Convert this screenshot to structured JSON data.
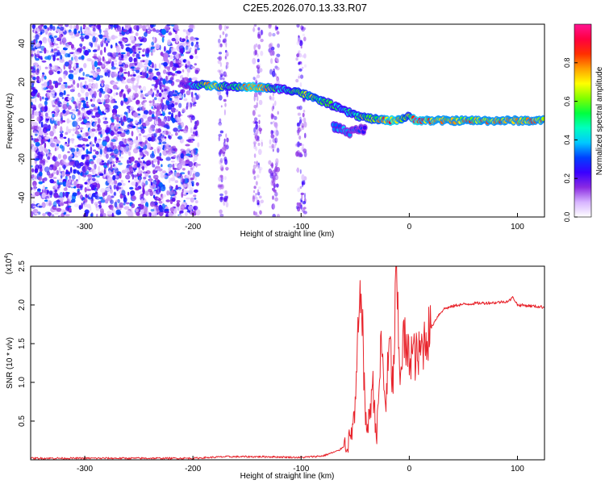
{
  "title": "C2E5.2026.070.13.33.R07",
  "chart_data": [
    {
      "type": "heatmap",
      "name": "spectrogram",
      "xlabel": "Height of straight line (km)",
      "ylabel": "Frequency (Hz)",
      "xlim": [
        -350,
        125
      ],
      "ylim": [
        -50,
        50
      ],
      "xticks": [
        -300,
        -200,
        -100,
        0,
        100
      ],
      "yticks": [
        -40,
        -20,
        0,
        20,
        40
      ],
      "colorbar": {
        "label": "Normalized spectral amplitude",
        "range": [
          0.0,
          1.0
        ],
        "ticks": [
          0.0,
          0.2,
          0.4,
          0.6,
          0.8
        ],
        "colors": [
          "#ffffff",
          "#d7b4ff",
          "#8a2be2",
          "#3a00ff",
          "#0040ff",
          "#00c8ff",
          "#00ffc0",
          "#00ff40",
          "#80ff00",
          "#ffff00",
          "#ffa000",
          "#ff3000",
          "#ff0040",
          "#ff1493"
        ]
      },
      "noise_region_x": [
        -350,
        -195
      ],
      "streak_x": [
        -172,
        -140,
        -125,
        -100
      ],
      "signal_track": [
        {
          "x": -210,
          "f": 18.5,
          "a": 0.25
        },
        {
          "x": -195,
          "f": 18.5,
          "a": 0.55
        },
        {
          "x": -180,
          "f": 18.0,
          "a": 0.85
        },
        {
          "x": -165,
          "f": 17.5,
          "a": 0.45
        },
        {
          "x": -150,
          "f": 17.5,
          "a": 0.88
        },
        {
          "x": -135,
          "f": 17.0,
          "a": 0.82
        },
        {
          "x": -120,
          "f": 16.5,
          "a": 0.45
        },
        {
          "x": -105,
          "f": 15.5,
          "a": 0.6
        },
        {
          "x": -90,
          "f": 12.0,
          "a": 0.7
        },
        {
          "x": -75,
          "f": 9.0,
          "a": 0.55
        },
        {
          "x": -60,
          "f": 5.0,
          "a": 0.5
        },
        {
          "x": -45,
          "f": 2.0,
          "a": 0.6
        },
        {
          "x": -30,
          "f": 0.5,
          "a": 0.7
        },
        {
          "x": -15,
          "f": 0.0,
          "a": 0.9
        },
        {
          "x": 0,
          "f": 2.0,
          "a": 0.6
        },
        {
          "x": 5,
          "f": 0.5,
          "a": 0.92
        },
        {
          "x": 15,
          "f": 0.0,
          "a": 0.8
        },
        {
          "x": 40,
          "f": 0.0,
          "a": 0.78
        },
        {
          "x": 70,
          "f": 0.0,
          "a": 0.78
        },
        {
          "x": 100,
          "f": 0.0,
          "a": 0.78
        },
        {
          "x": 125,
          "f": 0.0,
          "a": 0.78
        }
      ],
      "lower_branch": [
        {
          "x": -70,
          "f": -3.0,
          "a": 0.45
        },
        {
          "x": -55,
          "f": -6.0,
          "a": 0.35
        },
        {
          "x": -40,
          "f": -4.0,
          "a": 0.3
        }
      ]
    },
    {
      "type": "line",
      "name": "snr",
      "xlabel": "Height of straight line (km)",
      "ylabel": "SNR (10 * v/v)",
      "yscale_label": "(x10",
      "yscale_exp": "4",
      "yscale_close": ")",
      "xlim": [
        -350,
        125
      ],
      "ylim": [
        0,
        2.5
      ],
      "xticks": [
        -300,
        -200,
        -100,
        0,
        100
      ],
      "yticks": [
        0.5,
        1.0,
        1.5,
        2.0,
        2.5
      ],
      "ytick_labels": [
        "0.5",
        "1.0",
        "1.5",
        "2.0",
        "2.5"
      ],
      "color": "#e8242c",
      "series": [
        {
          "x": -350,
          "y": 0.02
        },
        {
          "x": -250,
          "y": 0.02
        },
        {
          "x": -200,
          "y": 0.02
        },
        {
          "x": -170,
          "y": 0.04
        },
        {
          "x": -130,
          "y": 0.04
        },
        {
          "x": -100,
          "y": 0.03
        },
        {
          "x": -80,
          "y": 0.05
        },
        {
          "x": -65,
          "y": 0.12
        },
        {
          "x": -55,
          "y": 0.25
        },
        {
          "x": -50,
          "y": 0.6
        },
        {
          "x": -47,
          "y": 1.7
        },
        {
          "x": -44,
          "y": 2.2
        },
        {
          "x": -41,
          "y": 0.6
        },
        {
          "x": -38,
          "y": 0.4
        },
        {
          "x": -34,
          "y": 1.0
        },
        {
          "x": -30,
          "y": 0.3
        },
        {
          "x": -26,
          "y": 1.5
        },
        {
          "x": -22,
          "y": 0.7
        },
        {
          "x": -18,
          "y": 1.5
        },
        {
          "x": -15,
          "y": 0.9
        },
        {
          "x": -12,
          "y": 2.5
        },
        {
          "x": -9,
          "y": 1.1
        },
        {
          "x": -5,
          "y": 1.6
        },
        {
          "x": -2,
          "y": 1.3
        },
        {
          "x": 2,
          "y": 1.4
        },
        {
          "x": 8,
          "y": 1.3
        },
        {
          "x": 14,
          "y": 1.55
        },
        {
          "x": 20,
          "y": 1.7
        },
        {
          "x": 26,
          "y": 1.85
        },
        {
          "x": 32,
          "y": 1.95
        },
        {
          "x": 45,
          "y": 2.0
        },
        {
          "x": 60,
          "y": 2.02
        },
        {
          "x": 80,
          "y": 2.03
        },
        {
          "x": 92,
          "y": 2.05
        },
        {
          "x": 96,
          "y": 2.1
        },
        {
          "x": 100,
          "y": 2.0
        },
        {
          "x": 110,
          "y": 1.99
        },
        {
          "x": 125,
          "y": 1.97
        }
      ]
    }
  ]
}
